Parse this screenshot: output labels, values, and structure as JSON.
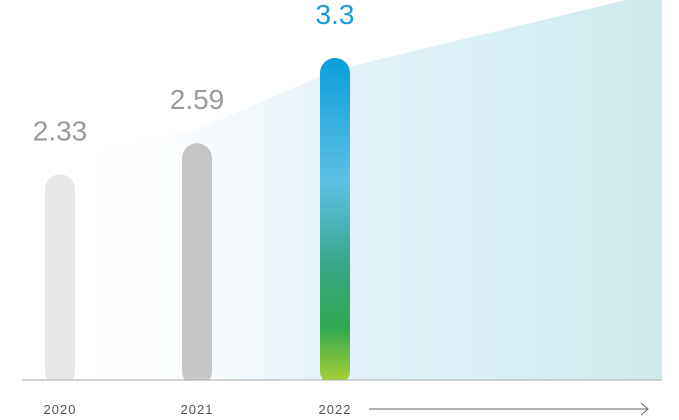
{
  "chart_data": {
    "type": "bar",
    "categories": [
      "2020",
      "2021",
      "2022"
    ],
    "values": [
      2.33,
      2.59,
      3.3
    ],
    "value_labels": [
      "2.33",
      "2.59",
      "3.3"
    ],
    "title": "",
    "xlabel": "",
    "ylabel": "",
    "ylim": [
      0,
      3.3
    ],
    "grid": false,
    "legend": "none",
    "colors": {
      "bar_2020": "#e6e6e6",
      "bar_2021": "#c6c6c6",
      "bar_2022_gradient": [
        "#0a9ed9",
        "#5ec0e6",
        "#3aa78c",
        "#2fa84f",
        "#b5d334"
      ],
      "label_gray": "#9a9a9a",
      "label_highlight": "#1a9ad6",
      "background_area": [
        "#ffffff",
        "#d4ecf3",
        "#cce8e8"
      ],
      "axis_line": "#aaaaaa",
      "arrow": "#666666"
    }
  }
}
